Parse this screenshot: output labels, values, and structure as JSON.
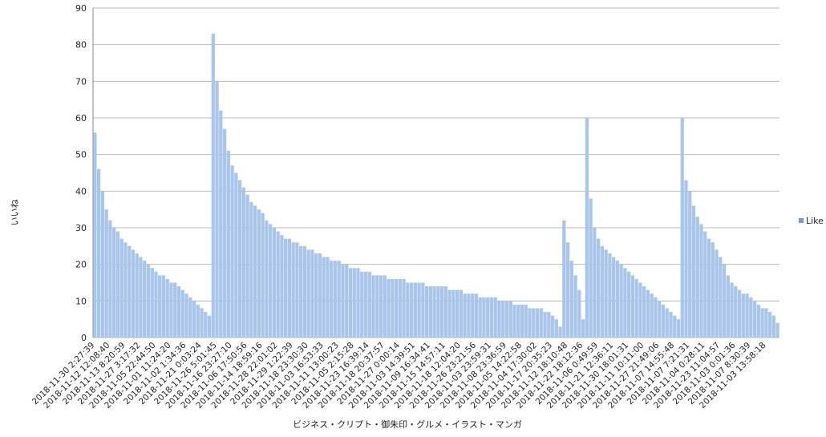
{
  "chart_data": {
    "type": "bar",
    "x_label": "ビジネス・クリプト・御朱印・グルメ・イラスト・マンガ",
    "y_label": "いいね",
    "categories": [
      "2018-11-30 2:27:39",
      null,
      null,
      null,
      "2018-11-12 12:08:40",
      null,
      null,
      null,
      "2018-11-13 8:20:59",
      null,
      null,
      null,
      "2018-11-27 3:17:32",
      null,
      null,
      null,
      "2018-11-05 22:44:50",
      null,
      null,
      null,
      "2018-11-01 11:24:20",
      null,
      null,
      null,
      "2018-11-02 1:34:36",
      null,
      null,
      null,
      "2018-11-21 0:03:24",
      null,
      null,
      null,
      "2018-11-26 5:01:45",
      null,
      null,
      null,
      "2018-11-16 23:27:10",
      null,
      null,
      null,
      "2018-11-06 17:50:56",
      null,
      null,
      null,
      "2018-11-14 18:59:16",
      null,
      null,
      null,
      "2018-11-28 22:01:02",
      null,
      null,
      null,
      "2018-11-29 1:22:39",
      null,
      null,
      null,
      "2018-11-18 23:30:30",
      null,
      null,
      null,
      "2018-11-03 16:53:33",
      null,
      null,
      null,
      "2018-11-11 13:00:23",
      null,
      null,
      null,
      "2018-11-05 2:15:28",
      null,
      null,
      null,
      "2018-11-23 16:39:14",
      null,
      null,
      null,
      "2018-11-18 20:37:57",
      null,
      null,
      null,
      "2018-11-27 0:00:14",
      null,
      null,
      null,
      "2018-11-03 14:39:51",
      null,
      null,
      null,
      "2018-11-09 16:34:41",
      null,
      null,
      null,
      "2018-11-15 14:57:11",
      null,
      null,
      null,
      "2018-11-18 12:04:20",
      null,
      null,
      null,
      "2018-11-26 23:21:56",
      null,
      null,
      null,
      "2018-11-03 23:59:31",
      null,
      null,
      null,
      "2018-11-08 23:36:59",
      null,
      null,
      null,
      "2018-11-05 14:22:58",
      null,
      null,
      null,
      "2018-11-04 17:30:02",
      null,
      null,
      null,
      "2018-11-17 20:35:23",
      null,
      null,
      null,
      "2018-11-12 18:10:48",
      null,
      null,
      null,
      "2018-11-22 18:12:36",
      null,
      null,
      null,
      "2018-11-06 0:49:59",
      null,
      null,
      null,
      "2018-11-21 12:36:11",
      null,
      null,
      null,
      "2018-11-30 18:01:31",
      null,
      null,
      null,
      "2018-11-11 10:11:00",
      null,
      null,
      null,
      "2018-11-27 21:49:06",
      null,
      null,
      null,
      "2018-11-07 14:55:48",
      null,
      null,
      null,
      "2018-11-07 7:21:31",
      null,
      null,
      null,
      "2018-11-04 0:28:11",
      null,
      null,
      null,
      "2018-11-23 11:04:57",
      null,
      null,
      null,
      "2018-11-03 0:01:36",
      null,
      null,
      null,
      "2018-11-07 8:30:39",
      null,
      null,
      null,
      "2018-11-03 13:58:18",
      null,
      null,
      null
    ],
    "series": [
      {
        "name": "Like",
        "color": "#a9c6ea",
        "legend_color": "#6f9bd8",
        "values": [
          56,
          46,
          40,
          35,
          32,
          30,
          29,
          27,
          26,
          25,
          24,
          23,
          22,
          21,
          20,
          19,
          18,
          17,
          17,
          16,
          15,
          15,
          14,
          13,
          12,
          11,
          10,
          9,
          8,
          7,
          6,
          83,
          70,
          62,
          57,
          51,
          47,
          45,
          43,
          41,
          39,
          37,
          36,
          35,
          34,
          32,
          31,
          30,
          29,
          28,
          27,
          27,
          26,
          26,
          25,
          25,
          24,
          24,
          23,
          23,
          22,
          22,
          21,
          21,
          21,
          20,
          20,
          19,
          19,
          19,
          18,
          18,
          18,
          17,
          17,
          17,
          17,
          16,
          16,
          16,
          16,
          16,
          15,
          15,
          15,
          15,
          15,
          14,
          14,
          14,
          14,
          14,
          14,
          13,
          13,
          13,
          13,
          12,
          12,
          12,
          12,
          11,
          11,
          11,
          11,
          11,
          10,
          10,
          10,
          10,
          9,
          9,
          9,
          9,
          8,
          8,
          8,
          8,
          7,
          7,
          6,
          5,
          3,
          32,
          26,
          21,
          17,
          13,
          5,
          60,
          38,
          30,
          27,
          25,
          24,
          23,
          22,
          21,
          20,
          19,
          18,
          17,
          16,
          15,
          14,
          13,
          12,
          11,
          10,
          9,
          8,
          7,
          6,
          5,
          60,
          43,
          40,
          36,
          33,
          31,
          29,
          27,
          26,
          24,
          22,
          20,
          17,
          15,
          14,
          13,
          12,
          12,
          11,
          10,
          9,
          8,
          8,
          7,
          6,
          4
        ]
      }
    ],
    "ylim": [
      0,
      90
    ],
    "yticks": [
      0,
      10,
      20,
      30,
      40,
      50,
      60,
      70,
      80,
      90
    ],
    "grid": true,
    "legend": "right"
  }
}
